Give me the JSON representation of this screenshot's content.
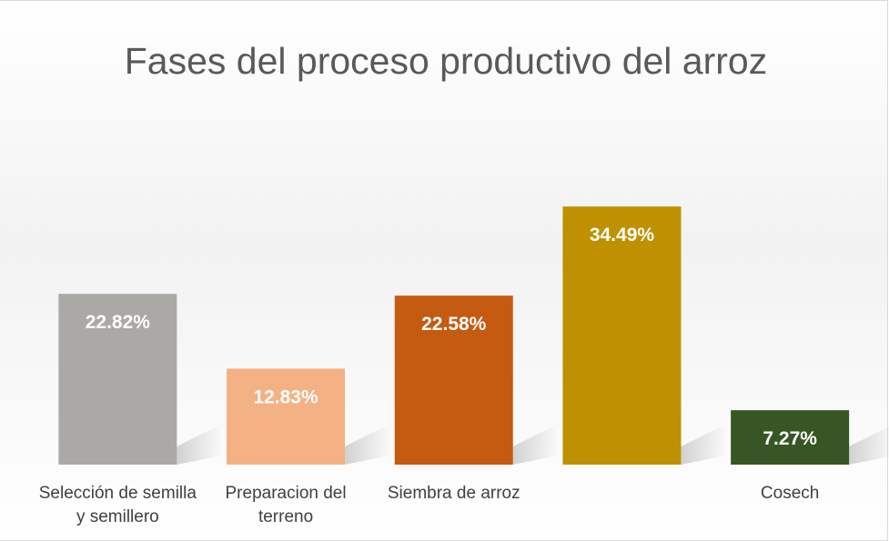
{
  "chart_data": {
    "type": "bar",
    "title": "Fases del proceso productivo del arroz",
    "categories": [
      "Selección de semilla y semillero",
      "Preparacion del terreno",
      "Siembra de arroz",
      null,
      "Cosech"
    ],
    "values": [
      22.82,
      12.83,
      22.58,
      34.49,
      7.27
    ],
    "value_labels": [
      "22.82%",
      "12.83%",
      "22.58%",
      "34.49%",
      "7.27%"
    ],
    "colors": [
      "#aba9a6",
      "#f4b183",
      "#c55a11",
      "#bf9000",
      "#375623"
    ]
  }
}
